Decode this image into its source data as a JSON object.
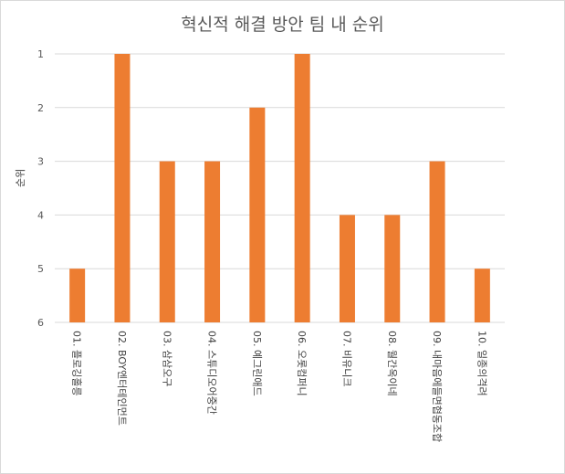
{
  "chart_data": {
    "type": "bar",
    "title": "혁신적 해결 방안 팀 내 순위",
    "ylabel": "순위",
    "xlabel": "",
    "categories": [
      "01. 플로깅홀릉",
      "02. BOY엔터테인먼트",
      "03. 삼삼오구",
      "04. 스튜디오어중간",
      "05. 예그린애드",
      "06. 오롯컴퍼니",
      "07. 비유니크",
      "08. 월간옥이네",
      "09. 내마음에들면협동조합",
      "10. 일종의격려"
    ],
    "values": [
      5,
      1,
      3,
      3,
      2,
      1,
      4,
      4,
      3,
      5
    ],
    "ylim": [
      1,
      6
    ],
    "y_ticks": [
      1,
      2,
      3,
      4,
      5,
      6
    ],
    "y_reversed": true,
    "grid": true,
    "bar_color": "#ED7D31"
  }
}
